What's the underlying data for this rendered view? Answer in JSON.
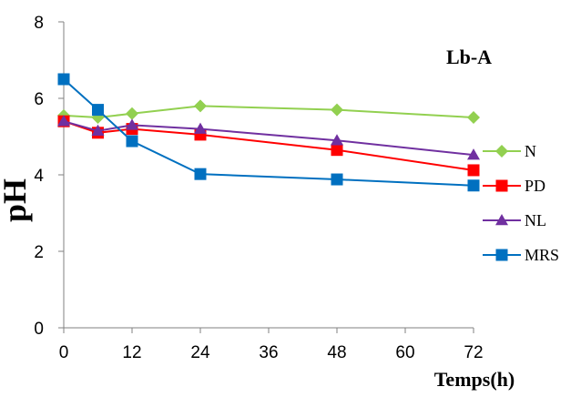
{
  "chart_data": {
    "type": "line",
    "x": [
      0,
      6,
      12,
      24,
      48,
      72
    ],
    "xticks": [
      "0",
      "12",
      "24",
      "36",
      "48",
      "60",
      "72"
    ],
    "yticks": [
      "0",
      "2",
      "4",
      "6",
      "8"
    ],
    "xlim": [
      0,
      72
    ],
    "ylim": [
      0,
      8
    ],
    "xlabel": "Temps(h)",
    "ylabel": "pH",
    "annotation": "Lb-A",
    "grid": false,
    "legend_position": "right",
    "series": [
      {
        "name": "N",
        "color": "#92D050",
        "marker": "diamond",
        "values": [
          5.55,
          5.5,
          5.6,
          5.8,
          5.7,
          5.5
        ]
      },
      {
        "name": "PD",
        "color": "#FF0000",
        "marker": "square",
        "values": [
          5.4,
          5.1,
          5.2,
          5.05,
          4.65,
          4.12
        ]
      },
      {
        "name": "NL",
        "color": "#7030A0",
        "marker": "triangle",
        "values": [
          5.4,
          5.15,
          5.3,
          5.2,
          4.9,
          4.52
        ]
      },
      {
        "name": "MRS",
        "color": "#0070C0",
        "marker": "square",
        "values": [
          6.5,
          5.7,
          4.88,
          4.02,
          3.88,
          3.72
        ]
      }
    ]
  }
}
